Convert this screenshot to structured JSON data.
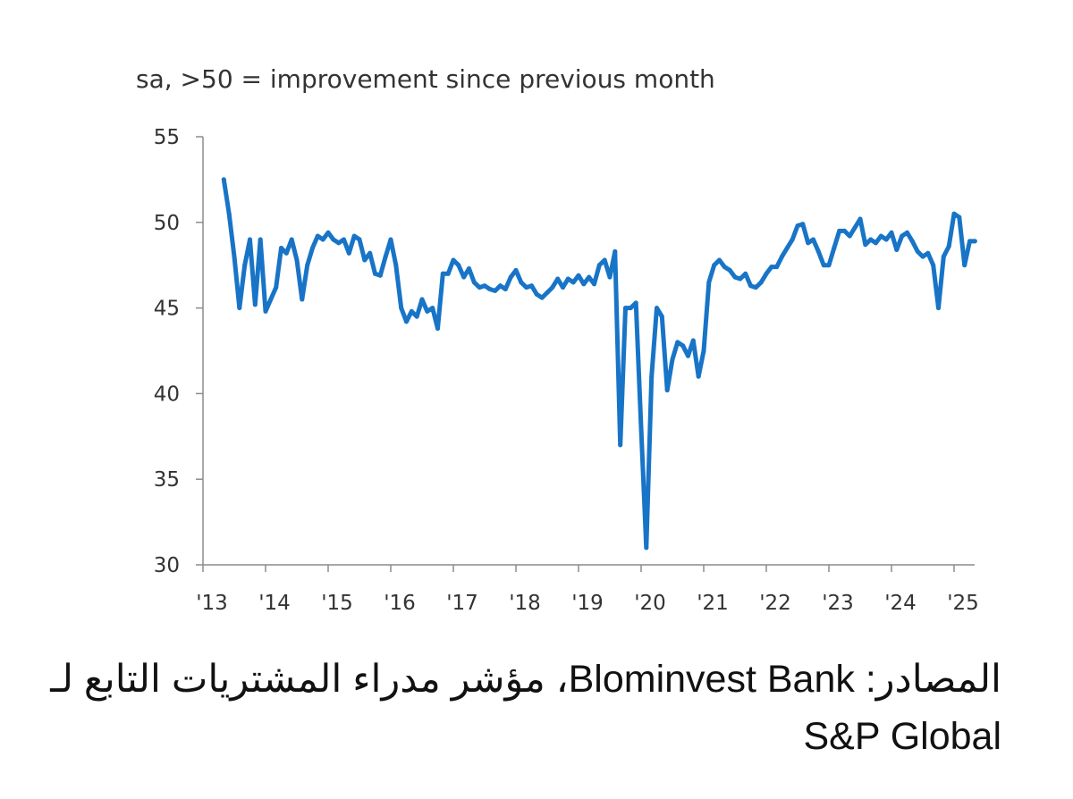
{
  "chart_data": {
    "type": "line",
    "subtitle": "sa, >50 = improvement since previous month",
    "xlabel": "",
    "ylabel": "",
    "ylim": [
      30,
      55
    ],
    "yticks": [
      30,
      35,
      40,
      45,
      50,
      55
    ],
    "x_tick_labels": [
      "'13",
      "'14",
      "'15",
      "'16",
      "'17",
      "'18",
      "'19",
      "'20",
      "'21",
      "'22",
      "'23",
      "'24",
      "'25"
    ],
    "grid": false,
    "legend": "none",
    "line_color": "#1874C7",
    "series": [
      {
        "name": "",
        "x": [
          "2013-05",
          "2013-06",
          "2013-07",
          "2013-08",
          "2013-09",
          "2013-10",
          "2013-11",
          "2013-12",
          "2014-01",
          "2014-02",
          "2014-03",
          "2014-04",
          "2014-05",
          "2014-06",
          "2014-07",
          "2014-08",
          "2014-09",
          "2014-10",
          "2014-11",
          "2014-12",
          "2015-01",
          "2015-02",
          "2015-03",
          "2015-04",
          "2015-05",
          "2015-06",
          "2015-07",
          "2015-08",
          "2015-09",
          "2015-10",
          "2015-11",
          "2015-12",
          "2016-01",
          "2016-02",
          "2016-03",
          "2016-04",
          "2016-05",
          "2016-06",
          "2016-07",
          "2016-08",
          "2016-09",
          "2016-10",
          "2016-11",
          "2016-12",
          "2017-01",
          "2017-02",
          "2017-03",
          "2017-04",
          "2017-05",
          "2017-06",
          "2017-07",
          "2017-08",
          "2017-09",
          "2017-10",
          "2017-11",
          "2017-12",
          "2018-01",
          "2018-02",
          "2018-03",
          "2018-04",
          "2018-05",
          "2018-06",
          "2018-07",
          "2018-08",
          "2018-09",
          "2018-10",
          "2018-11",
          "2018-12",
          "2019-01",
          "2019-02",
          "2019-03",
          "2019-04",
          "2019-05",
          "2019-06",
          "2019-07",
          "2019-08",
          "2019-09",
          "2019-10",
          "2019-11",
          "2019-12",
          "2020-01",
          "2020-02",
          "2020-03",
          "2020-04",
          "2020-05",
          "2020-06",
          "2020-07",
          "2020-08",
          "2020-09",
          "2020-10",
          "2020-11",
          "2020-12",
          "2021-01",
          "2021-02",
          "2021-03",
          "2021-04",
          "2021-05",
          "2021-06",
          "2021-07",
          "2021-08",
          "2021-09",
          "2021-10",
          "2021-11",
          "2021-12",
          "2022-01",
          "2022-02",
          "2022-03",
          "2022-04",
          "2022-05",
          "2022-06",
          "2022-07",
          "2022-08",
          "2022-09",
          "2022-10",
          "2022-11",
          "2022-12",
          "2023-01",
          "2023-02",
          "2023-03",
          "2023-04",
          "2023-05",
          "2023-06",
          "2023-07",
          "2023-08",
          "2023-09",
          "2023-10",
          "2023-11",
          "2023-12",
          "2024-01",
          "2024-02",
          "2024-03",
          "2024-04",
          "2024-05",
          "2024-06",
          "2024-07",
          "2024-08",
          "2024-09",
          "2024-10",
          "2024-11",
          "2024-12",
          "2025-01",
          "2025-02",
          "2025-03",
          "2025-04",
          "2025-05"
        ],
        "values": [
          52.5,
          50.5,
          48.0,
          45.0,
          47.5,
          49.0,
          45.2,
          49.0,
          44.8,
          45.5,
          46.2,
          48.5,
          48.2,
          49.0,
          47.8,
          45.5,
          47.5,
          48.5,
          49.2,
          49.0,
          49.4,
          49.0,
          48.8,
          49.0,
          48.2,
          49.2,
          49.0,
          47.8,
          48.2,
          47.0,
          46.9,
          48.0,
          49.0,
          47.5,
          45.0,
          44.2,
          44.8,
          44.5,
          45.5,
          44.8,
          45.0,
          43.8,
          47.0,
          47.0,
          47.8,
          47.5,
          46.8,
          47.3,
          46.5,
          46.2,
          46.3,
          46.1,
          46.0,
          46.3,
          46.1,
          46.8,
          47.2,
          46.5,
          46.2,
          46.3,
          45.8,
          45.6,
          45.9,
          46.2,
          46.7,
          46.2,
          46.7,
          46.5,
          46.9,
          46.4,
          46.8,
          46.4,
          47.5,
          47.8,
          46.8,
          48.3,
          37.0,
          45.0,
          45.0,
          45.3,
          38.0,
          31.0,
          41.0,
          45.0,
          44.5,
          40.2,
          42.0,
          43.0,
          42.8,
          42.2,
          43.1,
          41.0,
          42.5,
          46.5,
          47.5,
          47.8,
          47.4,
          47.2,
          46.8,
          46.7,
          47.0,
          46.3,
          46.2,
          46.5,
          47.0,
          47.4,
          47.4,
          48.0,
          48.5,
          49.0,
          49.8,
          49.9,
          48.8,
          49.0,
          48.3,
          47.5,
          47.5,
          48.5,
          49.5,
          49.5,
          49.2,
          49.7,
          50.2,
          48.7,
          49.0,
          48.8,
          49.2,
          49.0,
          49.4,
          48.4,
          49.2,
          49.4,
          48.9,
          48.3,
          48.0,
          48.2,
          47.5,
          45.0,
          48.0,
          48.6,
          50.5,
          50.3,
          47.5,
          48.9,
          48.9
        ]
      }
    ]
  },
  "source_note": "المصادر: Blominvest Bank، مؤشر مدراء المشتريات التابع لـ S&P Global"
}
